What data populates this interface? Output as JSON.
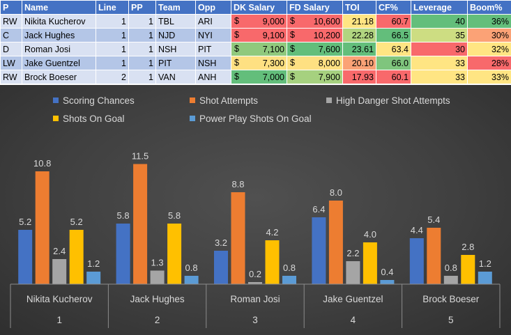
{
  "table": {
    "headers": [
      "P",
      "Name",
      "Line",
      "PP",
      "Team",
      "Opp",
      "DK Salary",
      "FD Salary",
      "TOI",
      "CF%",
      "Leverage",
      "Boom%"
    ],
    "currency_symbol": "$",
    "rows": [
      {
        "pos": "RW",
        "name": "Nikita Kucherov",
        "line": "1",
        "pp": "1",
        "team": "TBL",
        "opp": "ARI",
        "dk": "9,000",
        "fd": "10,600",
        "toi": "21.18",
        "cf": "60.7",
        "leverage": "40",
        "boom": "36%",
        "colors": {
          "dk": "#f8696b",
          "fd": "#f8696b",
          "toi": "#ffe583",
          "cf": "#f8696b",
          "leverage": "#63be7b",
          "boom": "#63be7b"
        }
      },
      {
        "pos": "C",
        "name": "Jack Hughes",
        "line": "1",
        "pp": "1",
        "team": "NJD",
        "opp": "NYI",
        "dk": "9,100",
        "fd": "10,200",
        "toi": "22.28",
        "cf": "66.5",
        "leverage": "35",
        "boom": "30%",
        "colors": {
          "dk": "#f8696b",
          "fd": "#f8696b",
          "toi": "#b1d580",
          "cf": "#63be7b",
          "leverage": "#cddd82",
          "boom": "#fba276"
        }
      },
      {
        "pos": "D",
        "name": "Roman Josi",
        "line": "1",
        "pp": "1",
        "team": "NSH",
        "opp": "PIT",
        "dk": "7,100",
        "fd": "7,600",
        "toi": "23.61",
        "cf": "63.4",
        "leverage": "30",
        "boom": "32%",
        "colors": {
          "dk": "#90c97d",
          "fd": "#63be7b",
          "toi": "#63be7b",
          "cf": "#ffe583",
          "leverage": "#f8696b",
          "boom": "#ffe583"
        }
      },
      {
        "pos": "LW",
        "name": "Jake Guentzel",
        "line": "1",
        "pp": "1",
        "team": "PIT",
        "opp": "NSH",
        "dk": "7,300",
        "fd": "8,000",
        "toi": "20.10",
        "cf": "66.0",
        "leverage": "33",
        "boom": "28%",
        "colors": {
          "dk": "#fee082",
          "fd": "#fee082",
          "toi": "#fba276",
          "cf": "#7fc57d",
          "leverage": "#ffe583",
          "boom": "#f8696b"
        }
      },
      {
        "pos": "RW",
        "name": "Brock Boeser",
        "line": "2",
        "pp": "1",
        "team": "VAN",
        "opp": "ANH",
        "dk": "7,000",
        "fd": "7,900",
        "toi": "17.93",
        "cf": "60.1",
        "leverage": "33",
        "boom": "33%",
        "colors": {
          "dk": "#63be7b",
          "fd": "#a6d17f",
          "toi": "#f8696b",
          "cf": "#f8696b",
          "leverage": "#ffe583",
          "boom": "#ffe583"
        }
      }
    ]
  },
  "chart_data": {
    "type": "bar",
    "title": "",
    "categories": [
      {
        "name": "Nikita Kucherov",
        "index": "1"
      },
      {
        "name": "Jack Hughes",
        "index": "2"
      },
      {
        "name": "Roman Josi",
        "index": "3"
      },
      {
        "name": "Jake Guentzel",
        "index": "4"
      },
      {
        "name": "Brock Boeser",
        "index": "5"
      }
    ],
    "series": [
      {
        "name": "Scoring Chances",
        "color": "#4472c4",
        "values": [
          5.2,
          5.8,
          3.2,
          6.4,
          4.4
        ],
        "labels": [
          "5.2",
          "5.8",
          "3.2",
          "6.4",
          "4.4"
        ]
      },
      {
        "name": "Shot Attempts",
        "color": "#ed7d31",
        "values": [
          10.8,
          11.5,
          8.8,
          8.0,
          5.4
        ],
        "labels": [
          "10.8",
          "11.5",
          "8.8",
          "8.0",
          "5.4"
        ]
      },
      {
        "name": "High Danger Shot Attempts",
        "color": "#a5a5a5",
        "values": [
          2.4,
          1.3,
          0.2,
          2.2,
          0.8
        ],
        "labels": [
          "2.4",
          "1.3",
          "0.2",
          "2.2",
          "0.8"
        ]
      },
      {
        "name": "Shots On Goal",
        "color": "#ffc000",
        "values": [
          5.2,
          5.8,
          4.2,
          4.0,
          2.8
        ],
        "labels": [
          "5.2",
          "5.8",
          "4.2",
          "4.0",
          "2.8"
        ]
      },
      {
        "name": "Power Play Shots On Goal",
        "color": "#5b9bd5",
        "values": [
          1.2,
          0.8,
          0.8,
          0.4,
          1.2
        ],
        "labels": [
          "1.2",
          "0.8",
          "0.8",
          "0.4",
          "1.2"
        ]
      }
    ],
    "ylim": [
      0,
      12
    ],
    "legend_position": "top",
    "grid": false
  }
}
